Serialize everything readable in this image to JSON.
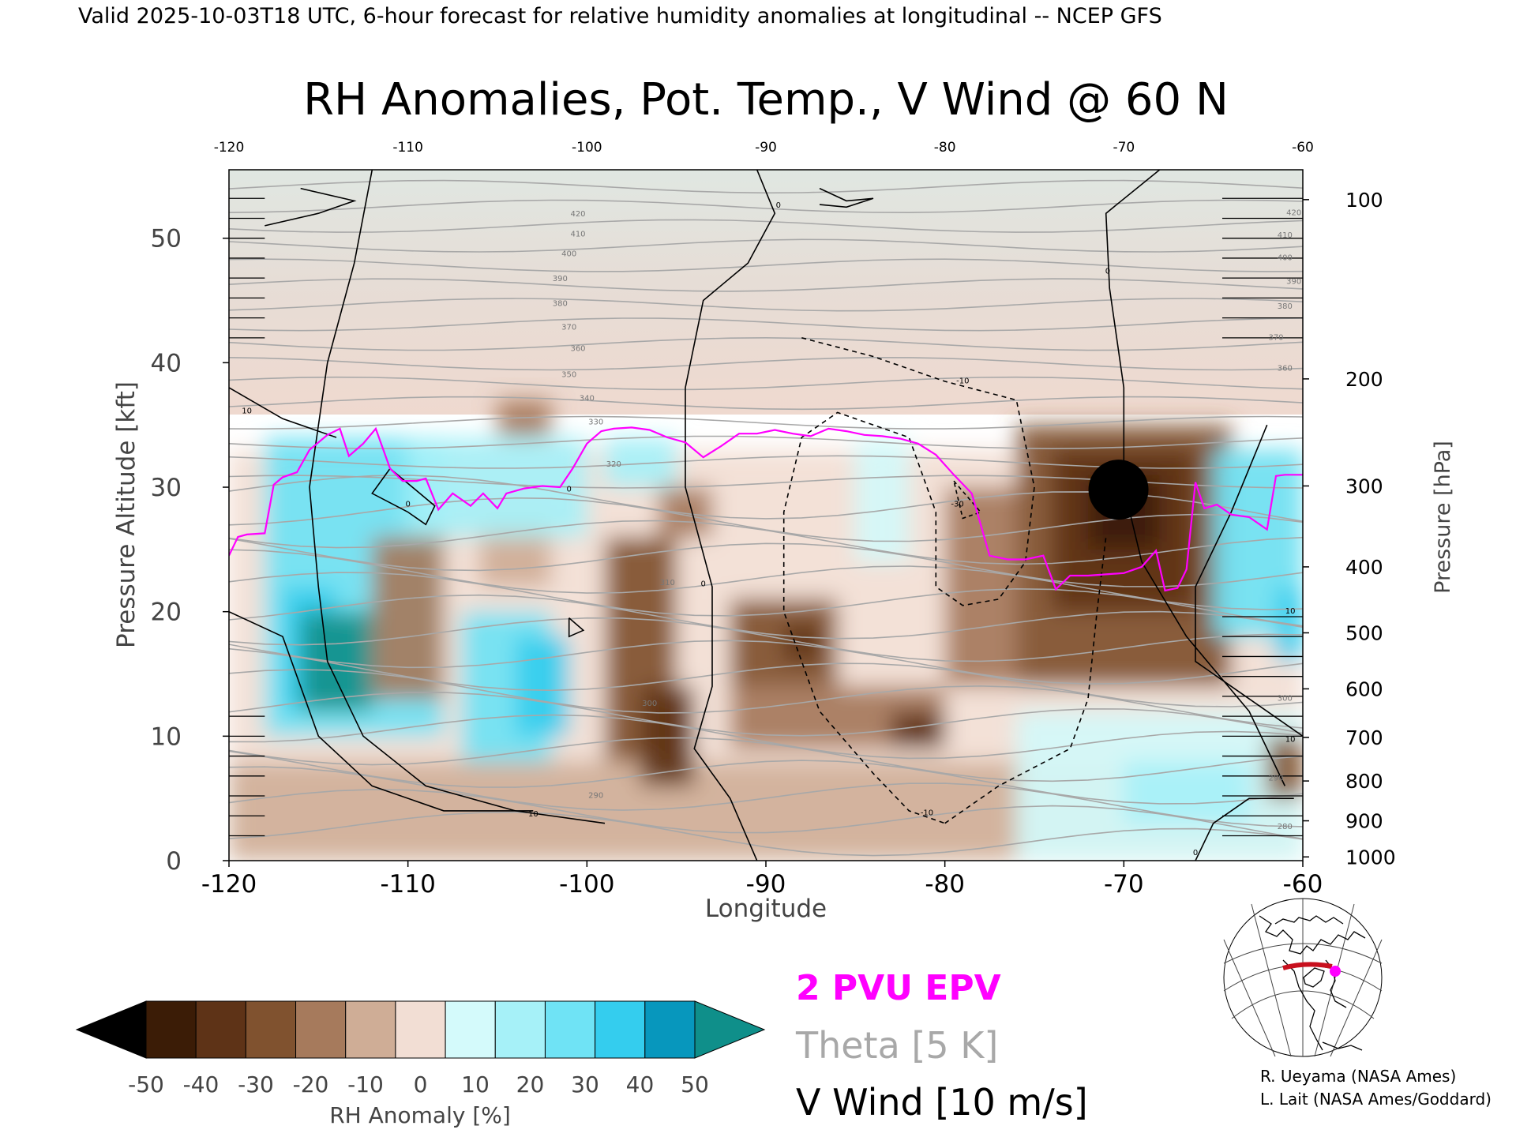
{
  "header": {
    "valid_line": "Valid 2025-10-03T18 UTC, 6-hour forecast for relative humidity anomalies at longitudinal -- NCEP GFS",
    "title": "RH Anomalies, Pot. Temp., V Wind @ 60 N"
  },
  "chart_data": {
    "type": "heatmap",
    "title": "RH Anomalies, Pot. Temp., V Wind @ 60 N",
    "xlabel": "Longitude",
    "ylabel_left": "Pressure Altitude [kft]",
    "ylabel_right": "Pressure [hPa]",
    "xlim": [
      -120,
      -60
    ],
    "ylim": [
      0,
      55.5
    ],
    "x_ticks": [
      "-120",
      "-110",
      "-100",
      "-90",
      "-80",
      "-70",
      "-60"
    ],
    "top_ticks": [
      "-120",
      "-110",
      "-100",
      "-90",
      "-80",
      "-70",
      "-60"
    ],
    "y_ticks": [
      "0",
      "10",
      "20",
      "30",
      "40",
      "50"
    ],
    "pressure_ticks": [
      {
        "label": "100",
        "kft": 53.1
      },
      {
        "label": "200",
        "kft": 38.7
      },
      {
        "label": "300",
        "kft": 30.1
      },
      {
        "label": "400",
        "kft": 23.6
      },
      {
        "label": "500",
        "kft": 18.3
      },
      {
        "label": "600",
        "kft": 13.8
      },
      {
        "label": "700",
        "kft": 9.9
      },
      {
        "label": "800",
        "kft": 6.4
      },
      {
        "label": "900",
        "kft": 3.2
      },
      {
        "label": "1000",
        "kft": 0.3
      }
    ],
    "theta_labels": [
      {
        "label": "420",
        "x": -100.5,
        "y": 52
      },
      {
        "label": "410",
        "x": -100.5,
        "y": 50.4
      },
      {
        "label": "400",
        "x": -101,
        "y": 48.8
      },
      {
        "label": "390",
        "x": -101.5,
        "y": 46.8
      },
      {
        "label": "380",
        "x": -101.5,
        "y": 44.8
      },
      {
        "label": "370",
        "x": -101,
        "y": 42.9
      },
      {
        "label": "360",
        "x": -100.5,
        "y": 41.2
      },
      {
        "label": "350",
        "x": -101,
        "y": 39.1
      },
      {
        "label": "340",
        "x": -100,
        "y": 37.2
      },
      {
        "label": "330",
        "x": -99.5,
        "y": 35.3
      },
      {
        "label": "320",
        "x": -98.5,
        "y": 31.9
      },
      {
        "label": "310",
        "x": -95.5,
        "y": 22.4
      },
      {
        "label": "300",
        "x": -96.5,
        "y": 12.7
      },
      {
        "label": "290",
        "x": -99.5,
        "y": 5.3
      },
      {
        "label": "420",
        "x": -60.5,
        "y": 52.1
      },
      {
        "label": "410",
        "x": -61,
        "y": 50.3
      },
      {
        "label": "400",
        "x": -61,
        "y": 48.5
      },
      {
        "label": "390",
        "x": -60.5,
        "y": 46.6
      },
      {
        "label": "380",
        "x": -61,
        "y": 44.6
      },
      {
        "label": "370",
        "x": -61.5,
        "y": 42.1
      },
      {
        "label": "360",
        "x": -61,
        "y": 39.6
      },
      {
        "label": "300",
        "x": -61,
        "y": 13.1
      },
      {
        "label": "290",
        "x": -61.5,
        "y": 6.7
      },
      {
        "label": "280",
        "x": -61,
        "y": 2.8
      }
    ],
    "wind_labels": [
      {
        "label": "0",
        "x": -89.3,
        "y": 52.7
      },
      {
        "label": "0",
        "x": -70.9,
        "y": 47.4
      },
      {
        "label": "10",
        "x": -119,
        "y": 36.2
      },
      {
        "label": "0",
        "x": -110,
        "y": 28.7
      },
      {
        "label": "0",
        "x": -101,
        "y": 29.9
      },
      {
        "label": "0",
        "x": -93.5,
        "y": 22.3
      },
      {
        "label": "-10",
        "x": -79,
        "y": 38.6
      },
      {
        "label": "-30",
        "x": -79.3,
        "y": 28.7
      },
      {
        "label": "10",
        "x": -60.7,
        "y": 20.1
      },
      {
        "label": "10",
        "x": -60.7,
        "y": 9.8
      },
      {
        "label": "10",
        "x": -103,
        "y": 3.8
      },
      {
        "label": "-10",
        "x": -81,
        "y": 3.9
      },
      {
        "label": "0",
        "x": -66,
        "y": 0.7
      }
    ],
    "pv_2pvu_line": {
      "x": [
        -120,
        -119.5,
        -119,
        -118,
        -117.5,
        -117,
        -116.2,
        -115.5,
        -114.5,
        -113.8,
        -113.3,
        -112.5,
        -111.8,
        -111,
        -110.3,
        -109.5,
        -109,
        -108.3,
        -107.5,
        -106.5,
        -105.8,
        -105,
        -104.5,
        -103.5,
        -102.5,
        -101.5,
        -100.8,
        -100,
        -99.2,
        -98.5,
        -97.5,
        -96.5,
        -95.5,
        -94.5,
        -93.5,
        -92.5,
        -91.5,
        -90.5,
        -89.5,
        -88.5,
        -87.5,
        -86.5,
        -85.5,
        -84.5,
        -83.5,
        -82.5,
        -81.5,
        -80.5,
        -79.5,
        -78.5,
        -77.5,
        -76.5,
        -75.5,
        -74.5,
        -73.8,
        -73,
        -72,
        -71,
        -70,
        -69,
        -68.2,
        -67.7,
        -67,
        -66.5,
        -66,
        -65.5,
        -64.8,
        -64,
        -63,
        -62,
        -61.5,
        -61,
        -60
      ],
      "y": [
        24.5,
        26,
        26.2,
        26.3,
        30.2,
        30.8,
        31.2,
        33,
        34.2,
        34.7,
        32.5,
        33.5,
        34.7,
        31.5,
        30.5,
        30.5,
        30.7,
        28.2,
        29.5,
        28.5,
        29.5,
        28.3,
        29.5,
        29.9,
        30.1,
        30,
        31.5,
        33.5,
        34.5,
        34.7,
        34.8,
        34.6,
        34,
        33.6,
        32.4,
        33.3,
        34.3,
        34.3,
        34.6,
        34.3,
        34.1,
        34.7,
        34.5,
        34.2,
        34.1,
        33.9,
        33.5,
        32.6,
        31,
        29.5,
        24.5,
        24.2,
        24.2,
        24.5,
        21.8,
        22.9,
        22.9,
        23,
        23.1,
        23.6,
        24.9,
        21.7,
        21.9,
        23.4,
        30.4,
        28.3,
        28.6,
        27.8,
        27.6,
        26.6,
        30.9,
        31,
        31
      ]
    },
    "colorbar": {
      "label": "RH Anomaly [%]",
      "tick_labels": [
        "-50",
        "-40",
        "-30",
        "-20",
        "-10",
        "0",
        "10",
        "20",
        "30",
        "40",
        "50"
      ],
      "bins": [
        -50,
        -40,
        -30,
        -20,
        -10,
        0,
        10,
        20,
        30,
        40,
        50
      ],
      "colors": [
        "#3b1c06",
        "#5e3317",
        "#80522f",
        "#a67a5c",
        "#cfad96",
        "#f2ded4",
        "#d4fafb",
        "#a6f1f8",
        "#6fe3f5",
        "#34cdee",
        "#0797bd"
      ],
      "below_color": "#000000",
      "above_color": "#0f8f8a"
    },
    "legend": [
      {
        "label": "2 PVU EPV",
        "color": "#ff00ff"
      },
      {
        "label": "Theta [5 K]",
        "color": "#a8a8a8"
      },
      {
        "label": "V Wind [10 m/s]",
        "color": "#000000"
      }
    ],
    "map_inset": {
      "latitude_marker": "60 N"
    }
  },
  "credits": [
    "R. Ueyama (NASA Ames)",
    "L. Lait (NASA Ames/Goddard)"
  ],
  "colors": {
    "pv_line": "#ff00ff",
    "theta_lines": "#a8a8a8",
    "wind_lines": "#000000",
    "stratosphere_bg": "#dfe8e3",
    "map_section": "#c8101e",
    "map_point": "#ff00ff"
  }
}
